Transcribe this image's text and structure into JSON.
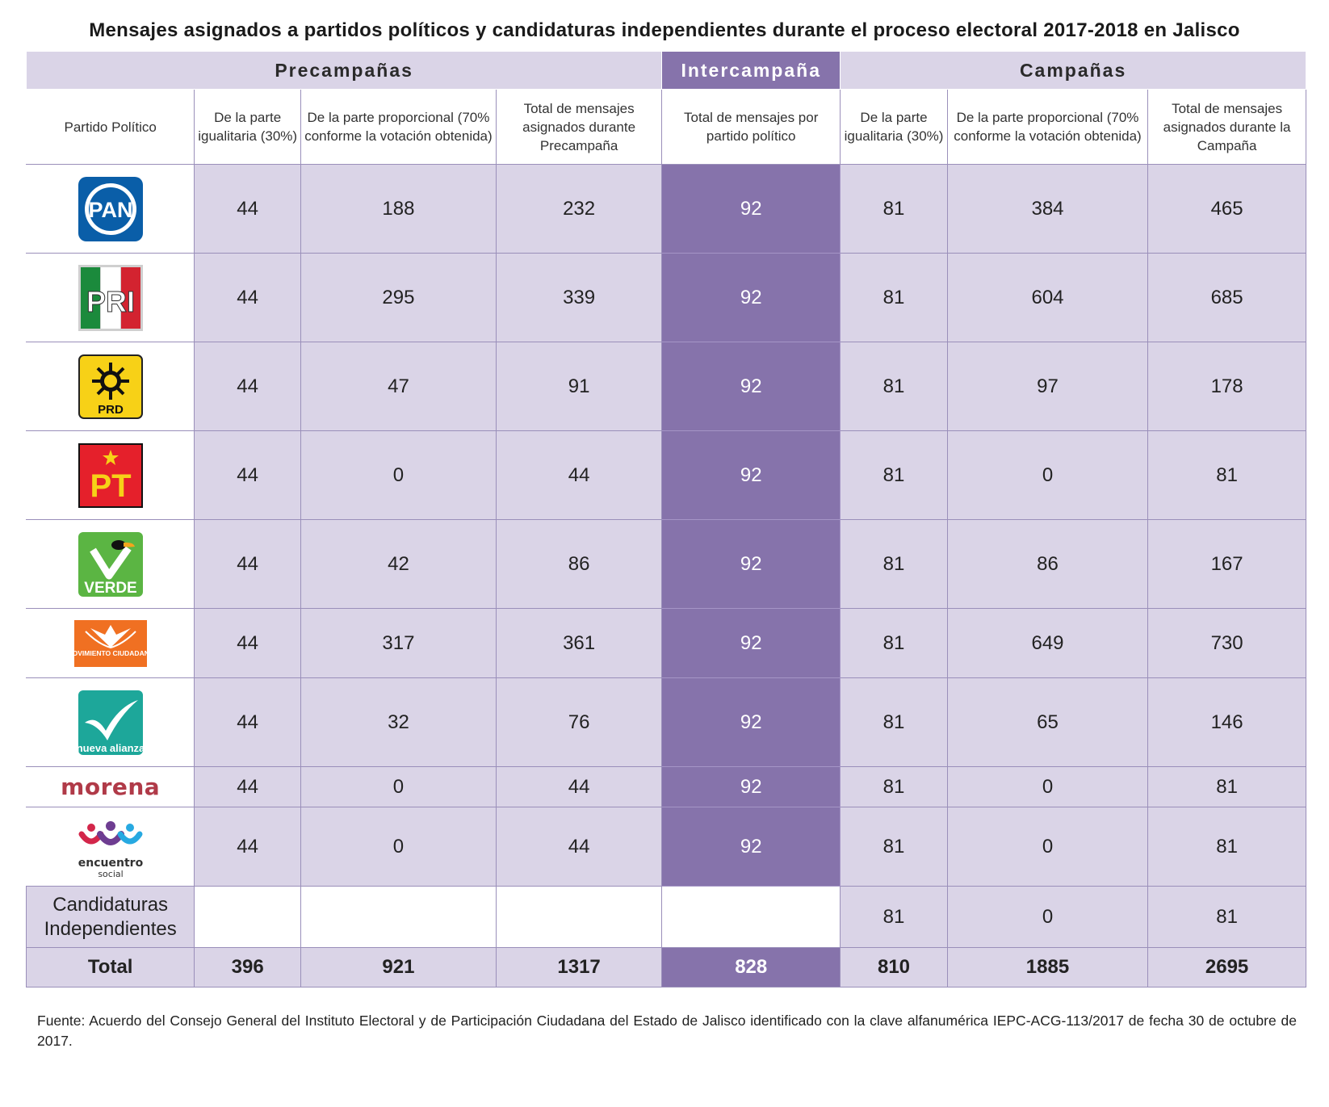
{
  "title": "Mensajes asignados a partidos políticos y candidaturas independientes durante el proceso electoral 2017-2018 en Jalisco",
  "groups": {
    "precampanas": "Precampañas",
    "intercampana": "Intercampaña",
    "campanas": "Campañas"
  },
  "columns": {
    "partido": "Partido Político",
    "pre_igualitaria": "De la parte igualitaria (30%)",
    "pre_proporcional": "De la parte proporcional (70% conforme la votación obtenida)",
    "pre_total": "Total de mensajes asignados durante Precampaña",
    "inter_total": "Total de mensajes por partido político",
    "camp_igualitaria": "De la parte igualitaria (30%)",
    "camp_proporcional": "De la parte proporcional (70% conforme la votación obtenida)",
    "camp_total": "Total de mensajes asignados durante la Campaña"
  },
  "rows": [
    {
      "logo": "pan-logo",
      "logo_text": "PAN",
      "values": [
        "44",
        "188",
        "232",
        "92",
        "81",
        "384",
        "465"
      ]
    },
    {
      "logo": "pri-logo",
      "logo_text": "PRI",
      "values": [
        "44",
        "295",
        "339",
        "92",
        "81",
        "604",
        "685"
      ]
    },
    {
      "logo": "prd-logo",
      "logo_text": "PRD",
      "values": [
        "44",
        "47",
        "91",
        "92",
        "81",
        "97",
        "178"
      ]
    },
    {
      "logo": "pt-logo",
      "logo_text": "PT",
      "values": [
        "44",
        "0",
        "44",
        "92",
        "81",
        "0",
        "81"
      ]
    },
    {
      "logo": "verde-logo",
      "logo_text": "VERDE",
      "values": [
        "44",
        "42",
        "86",
        "92",
        "81",
        "86",
        "167"
      ]
    },
    {
      "logo": "movimiento-ciudadano-logo",
      "logo_text": "MOVIMIENTO CIUDADANO",
      "values": [
        "44",
        "317",
        "361",
        "92",
        "81",
        "649",
        "730"
      ]
    },
    {
      "logo": "nueva-alianza-logo",
      "logo_text": "nueva alianza",
      "values": [
        "44",
        "32",
        "76",
        "92",
        "81",
        "65",
        "146"
      ]
    },
    {
      "logo": "morena-logo",
      "logo_text": "morena",
      "values": [
        "44",
        "0",
        "44",
        "92",
        "81",
        "0",
        "81"
      ]
    },
    {
      "logo": "encuentro-social-logo",
      "logo_text": "encuentro social",
      "values": [
        "44",
        "0",
        "44",
        "92",
        "81",
        "0",
        "81"
      ]
    }
  ],
  "independientes": {
    "label": "Candidaturas Independientes",
    "values": [
      "",
      "",
      "",
      "",
      "81",
      "0",
      "81"
    ]
  },
  "total": {
    "label": "Total",
    "values": [
      "396",
      "921",
      "1317",
      "828",
      "810",
      "1885",
      "2695"
    ]
  },
  "source": "Fuente: Acuerdo del Consejo General del Instituto Electoral y de Participación Ciudadana del Estado de Jalisco identificado con la clave alfanumérica IEPC-ACG-113/2017 de fecha 30 de octubre de 2017.",
  "colors": {
    "light_purple": "#dad4e7",
    "dark_purple": "#8673ab",
    "pan_blue": "#0a5ea8",
    "pri_green": "#1b8a3c",
    "pri_red": "#d32330",
    "prd_yellow": "#f7d117",
    "pt_red": "#e5202b",
    "verde_green": "#5bb543",
    "mc_orange": "#f07022",
    "na_teal": "#1da79a",
    "morena_maroon": "#b03a48"
  }
}
